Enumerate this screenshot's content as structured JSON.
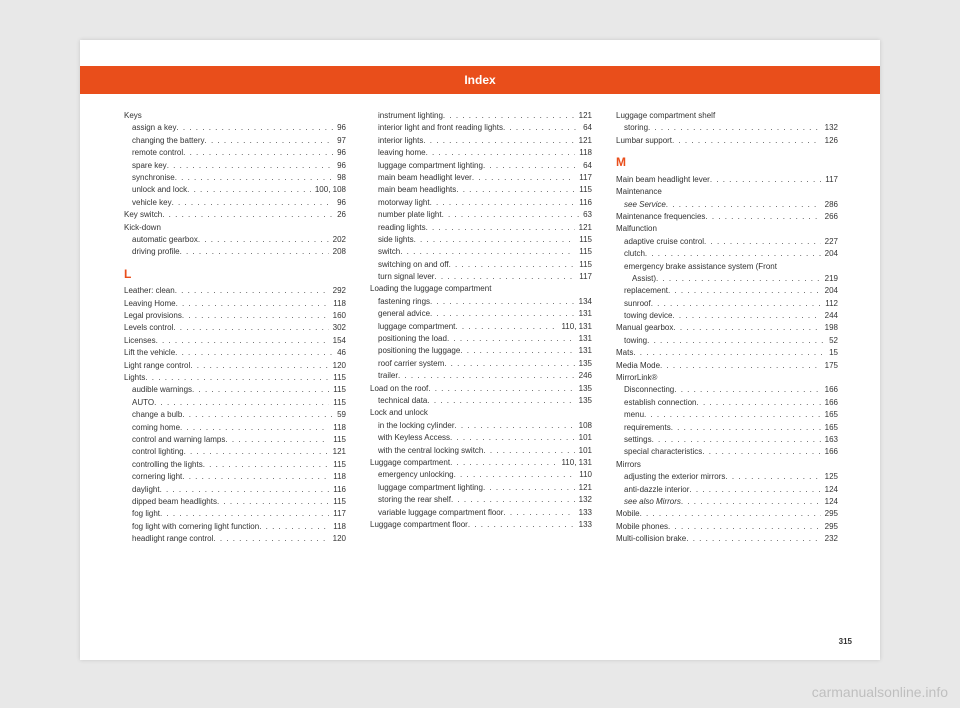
{
  "header": {
    "title": "Index"
  },
  "pageNumber": "315",
  "watermark": "carmanualsonline.info",
  "columns": [
    {
      "items": [
        {
          "type": "heading",
          "label": "Keys"
        },
        {
          "type": "sub",
          "label": "assign a key",
          "page": "96"
        },
        {
          "type": "sub",
          "label": "changing the battery",
          "page": "97"
        },
        {
          "type": "sub",
          "label": "remote control",
          "page": "96"
        },
        {
          "type": "sub",
          "label": "spare key",
          "page": "96"
        },
        {
          "type": "sub",
          "label": "synchronise",
          "page": "98"
        },
        {
          "type": "sub",
          "label": "unlock and lock",
          "page": "100, 108"
        },
        {
          "type": "sub",
          "label": "vehicle key",
          "page": "96"
        },
        {
          "type": "row",
          "label": "Key switch",
          "page": "26"
        },
        {
          "type": "heading",
          "label": "Kick-down"
        },
        {
          "type": "sub",
          "label": "automatic gearbox",
          "page": "202"
        },
        {
          "type": "sub",
          "label": "driving profile",
          "page": "208"
        },
        {
          "type": "letter",
          "label": "L"
        },
        {
          "type": "row",
          "label": "Leather: clean",
          "page": "292"
        },
        {
          "type": "row",
          "label": "Leaving Home",
          "page": "118"
        },
        {
          "type": "row",
          "label": "Legal provisions",
          "page": "160"
        },
        {
          "type": "row",
          "label": "Levels control",
          "page": "302"
        },
        {
          "type": "row",
          "label": "Licenses",
          "page": "154"
        },
        {
          "type": "row",
          "label": "Lift the vehicle",
          "page": "46"
        },
        {
          "type": "row",
          "label": "Light range control",
          "page": "120"
        },
        {
          "type": "row",
          "label": "Lights",
          "page": "115"
        },
        {
          "type": "sub",
          "label": "audible warnings",
          "page": "115"
        },
        {
          "type": "sub",
          "label": "AUTO",
          "page": "115"
        },
        {
          "type": "sub",
          "label": "change a bulb",
          "page": "59"
        },
        {
          "type": "sub",
          "label": "coming home",
          "page": "118"
        },
        {
          "type": "sub",
          "label": "control and warning lamps",
          "page": "115"
        },
        {
          "type": "sub",
          "label": "control lighting",
          "page": "121"
        },
        {
          "type": "sub",
          "label": "controlling the lights",
          "page": "115"
        },
        {
          "type": "sub",
          "label": "cornering light",
          "page": "118"
        },
        {
          "type": "sub",
          "label": "daylight",
          "page": "116"
        },
        {
          "type": "sub",
          "label": "dipped beam headlights",
          "page": "115"
        },
        {
          "type": "sub",
          "label": "fog light",
          "page": "117"
        },
        {
          "type": "sub",
          "label": "fog light with cornering light function",
          "page": "118"
        },
        {
          "type": "sub",
          "label": "headlight range control",
          "page": "120"
        }
      ]
    },
    {
      "items": [
        {
          "type": "sub",
          "label": "instrument lighting",
          "page": "121"
        },
        {
          "type": "sub",
          "label": "interior light and front reading lights",
          "page": "64"
        },
        {
          "type": "sub",
          "label": "interior lights",
          "page": "121"
        },
        {
          "type": "sub",
          "label": "leaving home",
          "page": "118"
        },
        {
          "type": "sub",
          "label": "luggage compartment lighting",
          "page": "64"
        },
        {
          "type": "sub",
          "label": "main beam headlight lever",
          "page": "117"
        },
        {
          "type": "sub",
          "label": "main beam headlights",
          "page": "115"
        },
        {
          "type": "sub",
          "label": "motorway light",
          "page": "116"
        },
        {
          "type": "sub",
          "label": "number plate light",
          "page": "63"
        },
        {
          "type": "sub",
          "label": "reading lights",
          "page": "121"
        },
        {
          "type": "sub",
          "label": "side lights",
          "page": "115"
        },
        {
          "type": "sub",
          "label": "switch",
          "page": "115"
        },
        {
          "type": "sub",
          "label": "switching on and off",
          "page": "115"
        },
        {
          "type": "sub",
          "label": "turn signal lever",
          "page": "117"
        },
        {
          "type": "heading",
          "label": "Loading the luggage compartment"
        },
        {
          "type": "sub",
          "label": "fastening rings",
          "page": "134"
        },
        {
          "type": "sub",
          "label": "general advice",
          "page": "131"
        },
        {
          "type": "sub",
          "label": "luggage compartment",
          "page": "110, 131"
        },
        {
          "type": "sub",
          "label": "positioning the load",
          "page": "131"
        },
        {
          "type": "sub",
          "label": "positioning the luggage",
          "page": "131"
        },
        {
          "type": "sub",
          "label": "roof carrier system",
          "page": "135"
        },
        {
          "type": "sub",
          "label": "trailer",
          "page": "246"
        },
        {
          "type": "row",
          "label": "Load on the roof",
          "page": "135"
        },
        {
          "type": "sub",
          "label": "technical data",
          "page": "135"
        },
        {
          "type": "heading",
          "label": "Lock and unlock"
        },
        {
          "type": "sub",
          "label": "in the locking cylinder",
          "page": "108"
        },
        {
          "type": "sub",
          "label": "with Keyless Access",
          "page": "101"
        },
        {
          "type": "sub",
          "label": "with the central locking switch",
          "page": "101"
        },
        {
          "type": "row",
          "label": "Luggage compartment",
          "page": "110, 131"
        },
        {
          "type": "sub",
          "label": "emergency unlocking",
          "page": "110"
        },
        {
          "type": "sub",
          "label": "luggage compartment lighting",
          "page": "121"
        },
        {
          "type": "sub",
          "label": "storing the rear shelf",
          "page": "132"
        },
        {
          "type": "sub",
          "label": "variable luggage compartment floor",
          "page": "133"
        },
        {
          "type": "row",
          "label": "Luggage compartment floor",
          "page": "133"
        }
      ]
    },
    {
      "items": [
        {
          "type": "heading",
          "label": "Luggage compartment shelf"
        },
        {
          "type": "sub",
          "label": "storing",
          "page": "132"
        },
        {
          "type": "row",
          "label": "Lumbar support",
          "page": "126"
        },
        {
          "type": "letter",
          "label": "M"
        },
        {
          "type": "row",
          "label": "Main beam headlight lever",
          "page": "117"
        },
        {
          "type": "heading",
          "label": "Maintenance"
        },
        {
          "type": "sub",
          "label": "see Service",
          "page": "286",
          "italic": true
        },
        {
          "type": "row",
          "label": "Maintenance frequencies",
          "page": "266"
        },
        {
          "type": "heading",
          "label": "Malfunction"
        },
        {
          "type": "sub",
          "label": "adaptive cruise control",
          "page": "227"
        },
        {
          "type": "sub",
          "label": "clutch",
          "page": "204"
        },
        {
          "type": "sub",
          "label": "emergency brake assistance system (Front",
          "page": ""
        },
        {
          "type": "sub2",
          "label": "Assist)",
          "page": "219"
        },
        {
          "type": "sub",
          "label": "replacement",
          "page": "204"
        },
        {
          "type": "sub",
          "label": "sunroof",
          "page": "112"
        },
        {
          "type": "sub",
          "label": "towing device",
          "page": "244"
        },
        {
          "type": "row",
          "label": "Manual gearbox",
          "page": "198"
        },
        {
          "type": "sub",
          "label": "towing",
          "page": "52"
        },
        {
          "type": "row",
          "label": "Mats",
          "page": "15"
        },
        {
          "type": "row",
          "label": "Media Mode",
          "page": "175"
        },
        {
          "type": "heading",
          "label": "MirrorLink®"
        },
        {
          "type": "sub",
          "label": "Disconnecting",
          "page": "166"
        },
        {
          "type": "sub",
          "label": "establish connection",
          "page": "166"
        },
        {
          "type": "sub",
          "label": "menu",
          "page": "165"
        },
        {
          "type": "sub",
          "label": "requirements",
          "page": "165"
        },
        {
          "type": "sub",
          "label": "settings",
          "page": "163"
        },
        {
          "type": "sub",
          "label": "special characteristics",
          "page": "166"
        },
        {
          "type": "heading",
          "label": "Mirrors"
        },
        {
          "type": "sub",
          "label": "adjusting the exterior mirrors",
          "page": "125"
        },
        {
          "type": "sub",
          "label": "anti-dazzle interior",
          "page": "124"
        },
        {
          "type": "sub",
          "label": "see also Mirrors",
          "page": "124",
          "italic": true
        },
        {
          "type": "row",
          "label": "Mobile",
          "page": "295"
        },
        {
          "type": "row",
          "label": "Mobile phones",
          "page": "295"
        },
        {
          "type": "row",
          "label": "Multi-collision brake",
          "page": "232"
        }
      ]
    }
  ]
}
